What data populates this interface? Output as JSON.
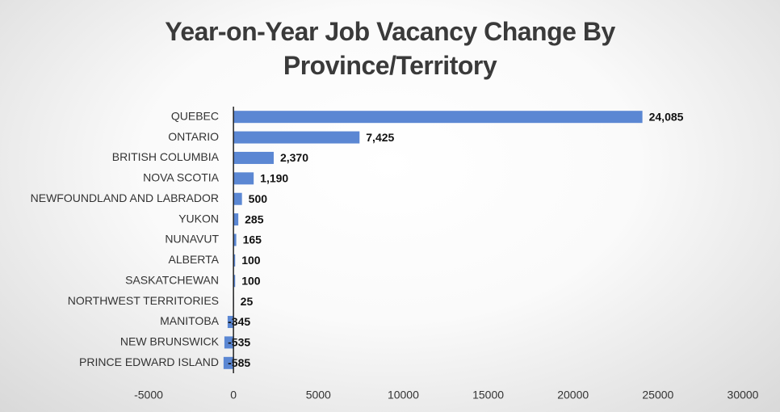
{
  "chart_data": {
    "type": "hbar",
    "title": "Year-on-Year Job Vacancy Change By Province/Territory",
    "categories": [
      "QUEBEC",
      "ONTARIO",
      "BRITISH COLUMBIA",
      "NOVA SCOTIA",
      "NEWFOUNDLAND AND LABRADOR",
      "YUKON",
      "NUNAVUT",
      "ALBERTA",
      "SASKATCHEWAN",
      "NORTHWEST TERRITORIES",
      "MANITOBA",
      "NEW BRUNSWICK",
      "PRINCE EDWARD ISLAND"
    ],
    "values": [
      24085,
      7425,
      2370,
      1190,
      500,
      285,
      165,
      100,
      100,
      25,
      -345,
      -535,
      -585
    ],
    "value_labels": [
      "24,085",
      "7,425",
      "2,370",
      "1,190",
      "500",
      "285",
      "165",
      "100",
      "100",
      "25",
      "-345",
      "-535",
      "-585"
    ],
    "color": "#5b87d3",
    "xlim": [
      -5000,
      30000
    ],
    "xticks": [
      -5000,
      0,
      5000,
      10000,
      15000,
      20000,
      25000,
      30000
    ],
    "grid": false
  }
}
